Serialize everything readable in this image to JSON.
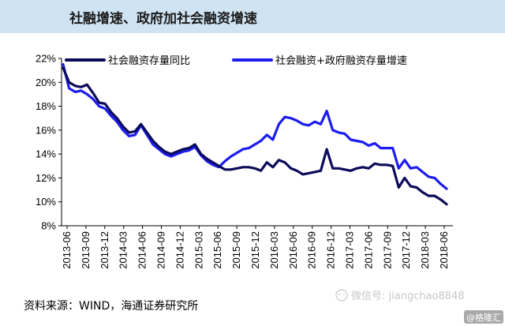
{
  "header": {
    "title": "社融增速、政府加社会融资增速"
  },
  "footer": {
    "source": "资料来源：WIND，海通证券研究所"
  },
  "watermark": {
    "wechat": "微信号: jiangchao8848",
    "brand": "@格隆汇"
  },
  "colors": {
    "title_bar": "#cfe3f3",
    "series_1": "#0b0b5a",
    "series_2": "#1c1cf0",
    "axis": "#000000"
  },
  "chart_data": {
    "type": "line",
    "title": "社融增速、政府加社会融资增速",
    "ylim": [
      8,
      22
    ],
    "y_ticks": [
      "8%",
      "10%",
      "12%",
      "14%",
      "16%",
      "18%",
      "20%",
      "22%"
    ],
    "y_unit": "%",
    "x_ticks": [
      "2013-06",
      "2013-09",
      "2013-12",
      "2014-03",
      "2014-06",
      "2014-09",
      "2014-12",
      "2015-03",
      "2015-06",
      "2015-09",
      "2015-12",
      "2016-03",
      "2016-06",
      "2016-09",
      "2016-12",
      "2017-03",
      "2017-06",
      "2017-09",
      "2017-12",
      "2018-03",
      "2018-06"
    ],
    "grid": false,
    "legend_position": "top",
    "series": [
      {
        "name": "社会融资存量同比",
        "color": "#0b0b5a",
        "values": [
          21.2,
          20.0,
          19.7,
          19.6,
          19.8,
          19.1,
          18.3,
          18.2,
          17.5,
          17.0,
          16.3,
          15.8,
          15.9,
          16.5,
          15.8,
          15.1,
          14.6,
          14.2,
          14.0,
          14.2,
          14.4,
          14.5,
          14.8,
          14.0,
          13.6,
          13.3,
          13.0,
          12.7,
          12.7,
          12.8,
          12.9,
          12.9,
          12.8,
          12.6,
          13.3,
          12.9,
          13.5,
          13.3,
          12.8,
          12.6,
          12.3,
          12.4,
          12.5,
          12.6,
          14.4,
          12.8,
          12.8,
          12.7,
          12.6,
          12.8,
          12.9,
          12.8,
          13.2,
          13.1,
          13.1,
          13.0,
          11.2,
          12.0,
          11.3,
          11.2,
          10.8,
          10.5,
          10.5,
          10.2,
          9.8
        ]
      },
      {
        "name": "社会融资+政府融资存量增速",
        "color": "#1c1cf0",
        "values": [
          21.5,
          19.5,
          19.2,
          19.3,
          19.0,
          18.6,
          18.0,
          17.8,
          17.2,
          16.7,
          16.0,
          15.5,
          15.6,
          16.4,
          15.6,
          14.8,
          14.4,
          14.0,
          13.8,
          14.0,
          14.2,
          14.3,
          14.6,
          13.9,
          13.4,
          13.1,
          12.9,
          13.4,
          13.8,
          14.1,
          14.4,
          14.5,
          14.8,
          15.1,
          15.6,
          15.2,
          16.5,
          17.1,
          17.0,
          16.8,
          16.5,
          16.4,
          16.7,
          16.5,
          17.6,
          16.0,
          15.8,
          15.7,
          15.2,
          15.1,
          15.0,
          14.7,
          14.9,
          14.5,
          14.5,
          14.5,
          12.8,
          13.5,
          12.8,
          12.9,
          12.5,
          12.1,
          12.0,
          11.5,
          11.1
        ]
      }
    ]
  }
}
